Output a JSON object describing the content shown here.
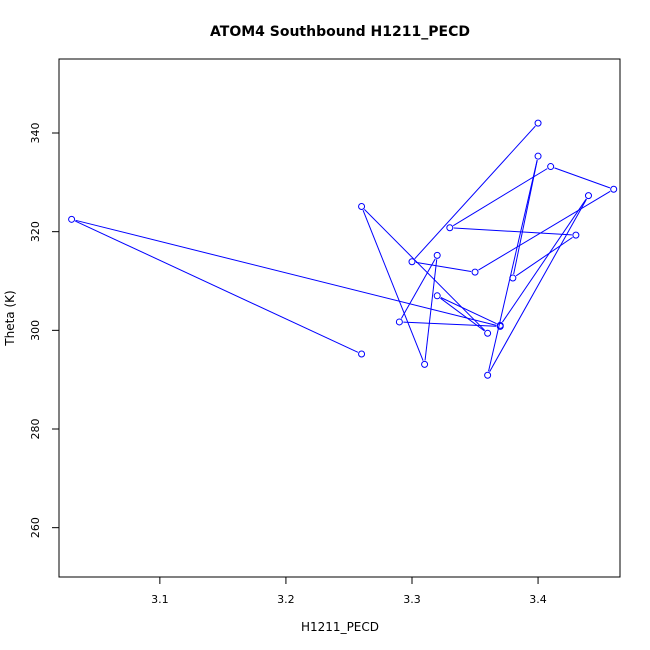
{
  "chart_data": {
    "type": "line",
    "title": "ATOM4 Southbound H1211_PECD",
    "xlabel": "H1211_PECD",
    "ylabel": "Theta (K)",
    "xlim": [
      3.02,
      3.465
    ],
    "ylim": [
      250,
      355
    ],
    "x_ticks": [
      3.1,
      3.2,
      3.3,
      3.4
    ],
    "y_ticks": [
      260,
      280,
      300,
      320,
      340
    ],
    "marker": "open-circle",
    "grid": false,
    "legend": "none",
    "color": "#0000ff",
    "series": [
      {
        "points": [
          [
            3.26,
            295.2
          ],
          [
            3.03,
            322.5
          ],
          [
            3.37,
            300.8
          ],
          [
            3.29,
            301.7
          ],
          [
            3.32,
            315.2
          ],
          [
            3.31,
            293.1
          ],
          [
            3.26,
            325.1
          ],
          [
            3.36,
            299.4
          ],
          [
            3.32,
            307.0
          ],
          [
            3.37,
            301.0
          ],
          [
            3.44,
            327.3
          ],
          [
            3.36,
            290.9
          ],
          [
            3.4,
            335.3
          ],
          [
            3.38,
            310.6
          ],
          [
            3.43,
            319.3
          ],
          [
            3.33,
            320.8
          ],
          [
            3.41,
            333.2
          ],
          [
            3.46,
            328.6
          ],
          [
            3.35,
            311.8
          ],
          [
            3.3,
            313.9
          ],
          [
            3.4,
            342.0
          ]
        ]
      }
    ]
  }
}
